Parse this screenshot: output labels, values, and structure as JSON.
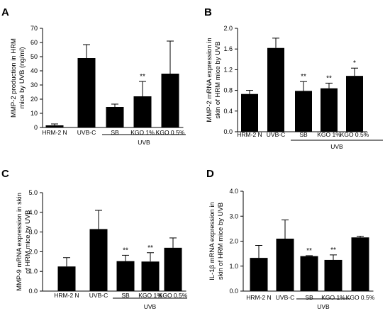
{
  "chart_data": [
    {
      "panel": "A",
      "type": "bar",
      "ylabel": [
        "MMP-2 production in HRM",
        "mice by UVB (ng/ml)"
      ],
      "ylim": [
        0,
        70
      ],
      "ticks": [
        "0",
        "10",
        "20",
        "30",
        "40",
        "50",
        "60",
        "70"
      ],
      "tick_values": [
        0,
        10,
        20,
        30,
        40,
        50,
        60,
        70
      ],
      "categories": [
        "HRM-2 N",
        "UVB-C",
        "SB",
        "KGO 1%",
        "KGO 0.5%"
      ],
      "values": [
        1.5,
        49,
        14.5,
        22,
        38
      ],
      "errors": [
        1,
        9.5,
        2,
        10.5,
        23
      ],
      "annotations": [
        "",
        "",
        "",
        "**",
        ""
      ],
      "group_label": "UVB"
    },
    {
      "panel": "B",
      "type": "bar",
      "ylabel": [
        "MMP-2 mRNA expression in",
        "skin of HRM mice by UVB"
      ],
      "ylim": [
        0,
        2.0
      ],
      "ticks": [
        "0.0",
        "0.4",
        "0.8",
        "1.2",
        "1.6",
        "2.0"
      ],
      "tick_values": [
        0,
        0.4,
        0.8,
        1.2,
        1.6,
        2.0
      ],
      "categories": [
        "HRM-2 N",
        "UVB-C",
        "SB",
        "KGO 1%",
        "KGO 0.5%"
      ],
      "values": [
        0.73,
        1.62,
        0.79,
        0.84,
        1.08
      ],
      "errors": [
        0.07,
        0.19,
        0.18,
        0.1,
        0.15
      ],
      "annotations": [
        "",
        "",
        "**",
        "**",
        "*"
      ],
      "group_label": "UVB"
    },
    {
      "panel": "C",
      "type": "bar",
      "ylabel": [
        "MMP-9 mRNA expression in skin",
        "of HRM mice by UVB"
      ],
      "ylim": [
        0,
        5.0
      ],
      "ticks": [
        "0.0",
        "1.0",
        "2.0",
        "3.0",
        "4.0",
        "5.0"
      ],
      "tick_values": [
        0,
        1,
        2,
        3,
        4,
        5
      ],
      "categories": [
        "HRM-2 N",
        "UVB-C",
        "SB",
        "KGO 1%",
        "KGO 0.5%"
      ],
      "values": [
        1.25,
        3.15,
        1.52,
        1.5,
        2.2
      ],
      "errors": [
        0.45,
        0.95,
        0.3,
        0.45,
        0.5
      ],
      "annotations": [
        "",
        "",
        "**",
        "**",
        ""
      ],
      "group_label": "UVB"
    },
    {
      "panel": "D",
      "type": "bar",
      "ylabel": [
        "IL-1β mRNA expression in",
        "skin of HRM mice by UVB"
      ],
      "ylim": [
        0,
        4.0
      ],
      "ticks": [
        "0.0",
        "1.0",
        "2.0",
        "3.0",
        "4.0"
      ],
      "tick_values": [
        0,
        1,
        2,
        3,
        4
      ],
      "categories": [
        "HRM-2 N",
        "UVB-C",
        "SB",
        "KGO 1%",
        "KGO 0.5%"
      ],
      "values": [
        1.33,
        2.1,
        1.4,
        1.25,
        2.15
      ],
      "errors": [
        0.5,
        0.75,
        0.02,
        0.2,
        0.05
      ],
      "annotations": [
        "",
        "",
        "**",
        "**",
        ""
      ],
      "group_label": "UVB"
    }
  ]
}
